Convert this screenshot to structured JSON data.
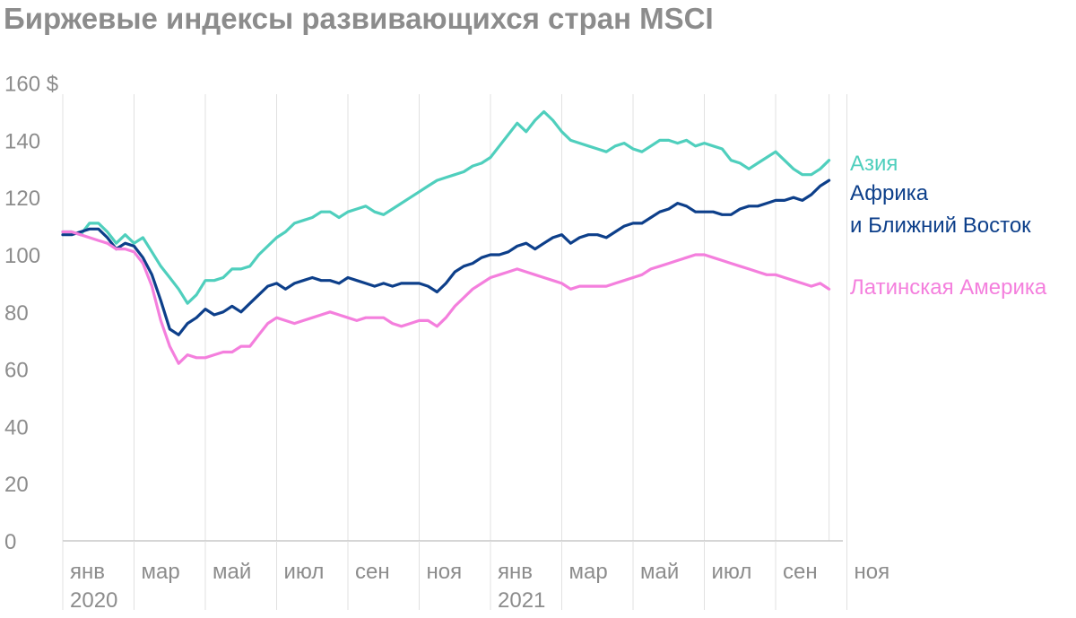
{
  "chart_data": {
    "type": "line",
    "title": "Биржевые индексы развивающихся стран MSCI",
    "xlabel": "",
    "ylabel": "",
    "ylim": [
      0,
      160
    ],
    "y_ticks": [
      {
        "value": 0,
        "label": "0"
      },
      {
        "value": 20,
        "label": "20"
      },
      {
        "value": 40,
        "label": "40"
      },
      {
        "value": 60,
        "label": "60"
      },
      {
        "value": 80,
        "label": "80"
      },
      {
        "value": 100,
        "label": "100"
      },
      {
        "value": 120,
        "label": "120"
      },
      {
        "value": 140,
        "label": "140"
      },
      {
        "value": 160,
        "label": "160 $"
      }
    ],
    "x_ticks": [
      {
        "month": 0,
        "label": "янв",
        "year": "2020"
      },
      {
        "month": 2,
        "label": "мар",
        "year": ""
      },
      {
        "month": 4,
        "label": "май",
        "year": ""
      },
      {
        "month": 6,
        "label": "июл",
        "year": ""
      },
      {
        "month": 8,
        "label": "сен",
        "year": ""
      },
      {
        "month": 10,
        "label": "ноя",
        "year": ""
      },
      {
        "month": 12,
        "label": "янв",
        "year": "2021"
      },
      {
        "month": 14,
        "label": "мар",
        "year": ""
      },
      {
        "month": 16,
        "label": "май",
        "year": ""
      },
      {
        "month": 18,
        "label": "июл",
        "year": ""
      },
      {
        "month": 20,
        "label": "сен",
        "year": ""
      },
      {
        "month": 22,
        "label": "ноя",
        "year": ""
      }
    ],
    "grid": "vertical",
    "legend": "right, at line ends",
    "series": [
      {
        "name": "Азия",
        "color": "#4fcfbd",
        "points": [
          [
            0,
            108
          ],
          [
            0.25,
            108
          ],
          [
            0.5,
            107
          ],
          [
            0.75,
            111
          ],
          [
            1,
            111
          ],
          [
            1.25,
            108
          ],
          [
            1.5,
            104
          ],
          [
            1.75,
            107
          ],
          [
            2,
            104
          ],
          [
            2.25,
            106
          ],
          [
            2.5,
            101
          ],
          [
            2.75,
            96
          ],
          [
            3,
            92
          ],
          [
            3.25,
            88
          ],
          [
            3.5,
            83
          ],
          [
            3.75,
            86
          ],
          [
            4,
            91
          ],
          [
            4.25,
            91
          ],
          [
            4.5,
            92
          ],
          [
            4.75,
            95
          ],
          [
            5,
            95
          ],
          [
            5.25,
            96
          ],
          [
            5.5,
            100
          ],
          [
            5.75,
            103
          ],
          [
            6,
            106
          ],
          [
            6.25,
            108
          ],
          [
            6.5,
            111
          ],
          [
            6.75,
            112
          ],
          [
            7,
            113
          ],
          [
            7.25,
            115
          ],
          [
            7.5,
            115
          ],
          [
            7.75,
            113
          ],
          [
            8,
            115
          ],
          [
            8.25,
            116
          ],
          [
            8.5,
            117
          ],
          [
            8.75,
            115
          ],
          [
            9,
            114
          ],
          [
            9.25,
            116
          ],
          [
            9.5,
            118
          ],
          [
            9.75,
            120
          ],
          [
            10,
            122
          ],
          [
            10.25,
            124
          ],
          [
            10.5,
            126
          ],
          [
            10.75,
            127
          ],
          [
            11,
            128
          ],
          [
            11.25,
            129
          ],
          [
            11.5,
            131
          ],
          [
            11.75,
            132
          ],
          [
            12,
            134
          ],
          [
            12.25,
            138
          ],
          [
            12.5,
            142
          ],
          [
            12.75,
            146
          ],
          [
            13,
            143
          ],
          [
            13.25,
            147
          ],
          [
            13.5,
            150
          ],
          [
            13.75,
            147
          ],
          [
            14,
            143
          ],
          [
            14.25,
            140
          ],
          [
            14.5,
            139
          ],
          [
            14.75,
            138
          ],
          [
            15,
            137
          ],
          [
            15.25,
            136
          ],
          [
            15.5,
            138
          ],
          [
            15.75,
            139
          ],
          [
            16,
            137
          ],
          [
            16.25,
            136
          ],
          [
            16.5,
            138
          ],
          [
            16.75,
            140
          ],
          [
            17,
            140
          ],
          [
            17.25,
            139
          ],
          [
            17.5,
            140
          ],
          [
            17.75,
            138
          ],
          [
            18,
            139
          ],
          [
            18.25,
            138
          ],
          [
            18.5,
            137
          ],
          [
            18.75,
            133
          ],
          [
            19,
            132
          ],
          [
            19.25,
            130
          ],
          [
            19.5,
            132
          ],
          [
            19.75,
            134
          ],
          [
            20,
            136
          ],
          [
            20.25,
            133
          ],
          [
            20.5,
            130
          ],
          [
            20.75,
            128
          ],
          [
            21,
            128
          ],
          [
            21.25,
            130
          ],
          [
            21.5,
            133
          ]
        ]
      },
      {
        "name": "Африка",
        "name_line2": "и Ближний Восток",
        "color": "#0d3f8a",
        "points": [
          [
            0,
            107
          ],
          [
            0.25,
            107
          ],
          [
            0.5,
            108
          ],
          [
            0.75,
            109
          ],
          [
            1,
            109
          ],
          [
            1.25,
            106
          ],
          [
            1.5,
            102
          ],
          [
            1.75,
            104
          ],
          [
            2,
            103
          ],
          [
            2.25,
            99
          ],
          [
            2.5,
            93
          ],
          [
            2.75,
            84
          ],
          [
            3,
            74
          ],
          [
            3.25,
            72
          ],
          [
            3.5,
            76
          ],
          [
            3.75,
            78
          ],
          [
            4,
            81
          ],
          [
            4.25,
            79
          ],
          [
            4.5,
            80
          ],
          [
            4.75,
            82
          ],
          [
            5,
            80
          ],
          [
            5.25,
            83
          ],
          [
            5.5,
            86
          ],
          [
            5.75,
            89
          ],
          [
            6,
            90
          ],
          [
            6.25,
            88
          ],
          [
            6.5,
            90
          ],
          [
            6.75,
            91
          ],
          [
            7,
            92
          ],
          [
            7.25,
            91
          ],
          [
            7.5,
            91
          ],
          [
            7.75,
            90
          ],
          [
            8,
            92
          ],
          [
            8.25,
            91
          ],
          [
            8.5,
            90
          ],
          [
            8.75,
            89
          ],
          [
            9,
            90
          ],
          [
            9.25,
            89
          ],
          [
            9.5,
            90
          ],
          [
            9.75,
            90
          ],
          [
            10,
            90
          ],
          [
            10.25,
            89
          ],
          [
            10.5,
            87
          ],
          [
            10.75,
            90
          ],
          [
            11,
            94
          ],
          [
            11.25,
            96
          ],
          [
            11.5,
            97
          ],
          [
            11.75,
            99
          ],
          [
            12,
            100
          ],
          [
            12.25,
            100
          ],
          [
            12.5,
            101
          ],
          [
            12.75,
            103
          ],
          [
            13,
            104
          ],
          [
            13.25,
            102
          ],
          [
            13.5,
            104
          ],
          [
            13.75,
            106
          ],
          [
            14,
            107
          ],
          [
            14.25,
            104
          ],
          [
            14.5,
            106
          ],
          [
            14.75,
            107
          ],
          [
            15,
            107
          ],
          [
            15.25,
            106
          ],
          [
            15.5,
            108
          ],
          [
            15.75,
            110
          ],
          [
            16,
            111
          ],
          [
            16.25,
            111
          ],
          [
            16.5,
            113
          ],
          [
            16.75,
            115
          ],
          [
            17,
            116
          ],
          [
            17.25,
            118
          ],
          [
            17.5,
            117
          ],
          [
            17.75,
            115
          ],
          [
            18,
            115
          ],
          [
            18.25,
            115
          ],
          [
            18.5,
            114
          ],
          [
            18.75,
            114
          ],
          [
            19,
            116
          ],
          [
            19.25,
            117
          ],
          [
            19.5,
            117
          ],
          [
            19.75,
            118
          ],
          [
            20,
            119
          ],
          [
            20.25,
            119
          ],
          [
            20.5,
            120
          ],
          [
            20.75,
            119
          ],
          [
            21,
            121
          ],
          [
            21.25,
            124
          ],
          [
            21.5,
            126
          ]
        ]
      },
      {
        "name": "Латинская Америка",
        "color": "#f47fdd",
        "points": [
          [
            0,
            108
          ],
          [
            0.25,
            108
          ],
          [
            0.5,
            107
          ],
          [
            0.75,
            106
          ],
          [
            1,
            105
          ],
          [
            1.25,
            104
          ],
          [
            1.5,
            102
          ],
          [
            1.75,
            102
          ],
          [
            2,
            101
          ],
          [
            2.25,
            97
          ],
          [
            2.5,
            89
          ],
          [
            2.75,
            77
          ],
          [
            3,
            68
          ],
          [
            3.25,
            62
          ],
          [
            3.5,
            65
          ],
          [
            3.75,
            64
          ],
          [
            4,
            64
          ],
          [
            4.25,
            65
          ],
          [
            4.5,
            66
          ],
          [
            4.75,
            66
          ],
          [
            5,
            68
          ],
          [
            5.25,
            68
          ],
          [
            5.5,
            72
          ],
          [
            5.75,
            76
          ],
          [
            6,
            78
          ],
          [
            6.25,
            77
          ],
          [
            6.5,
            76
          ],
          [
            6.75,
            77
          ],
          [
            7,
            78
          ],
          [
            7.25,
            79
          ],
          [
            7.5,
            80
          ],
          [
            7.75,
            79
          ],
          [
            8,
            78
          ],
          [
            8.25,
            77
          ],
          [
            8.5,
            78
          ],
          [
            8.75,
            78
          ],
          [
            9,
            78
          ],
          [
            9.25,
            76
          ],
          [
            9.5,
            75
          ],
          [
            9.75,
            76
          ],
          [
            10,
            77
          ],
          [
            10.25,
            77
          ],
          [
            10.5,
            75
          ],
          [
            10.75,
            78
          ],
          [
            11,
            82
          ],
          [
            11.25,
            85
          ],
          [
            11.5,
            88
          ],
          [
            11.75,
            90
          ],
          [
            12,
            92
          ],
          [
            12.25,
            93
          ],
          [
            12.5,
            94
          ],
          [
            12.75,
            95
          ],
          [
            13,
            94
          ],
          [
            13.25,
            93
          ],
          [
            13.5,
            92
          ],
          [
            13.75,
            91
          ],
          [
            14,
            90
          ],
          [
            14.25,
            88
          ],
          [
            14.5,
            89
          ],
          [
            14.75,
            89
          ],
          [
            15,
            89
          ],
          [
            15.25,
            89
          ],
          [
            15.5,
            90
          ],
          [
            15.75,
            91
          ],
          [
            16,
            92
          ],
          [
            16.25,
            93
          ],
          [
            16.5,
            95
          ],
          [
            16.75,
            96
          ],
          [
            17,
            97
          ],
          [
            17.25,
            98
          ],
          [
            17.5,
            99
          ],
          [
            17.75,
            100
          ],
          [
            18,
            100
          ],
          [
            18.25,
            99
          ],
          [
            18.5,
            98
          ],
          [
            18.75,
            97
          ],
          [
            19,
            96
          ],
          [
            19.25,
            95
          ],
          [
            19.5,
            94
          ],
          [
            19.75,
            93
          ],
          [
            20,
            93
          ],
          [
            20.25,
            92
          ],
          [
            20.5,
            91
          ],
          [
            20.75,
            90
          ],
          [
            21,
            89
          ],
          [
            21.25,
            90
          ],
          [
            21.5,
            88
          ]
        ]
      }
    ]
  }
}
